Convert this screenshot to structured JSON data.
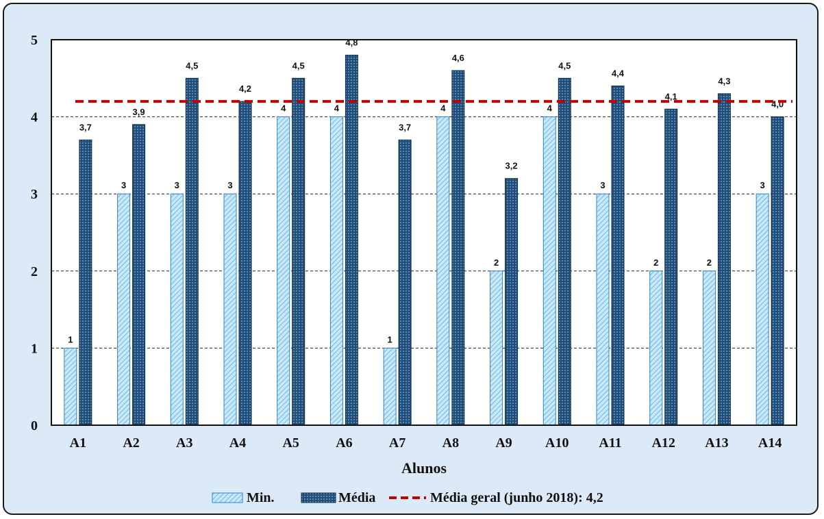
{
  "chart_data": {
    "type": "bar",
    "categories": [
      "A1",
      "A2",
      "A3",
      "A4",
      "A5",
      "A6",
      "A7",
      "A8",
      "A9",
      "A10",
      "A11",
      "A12",
      "A13",
      "A14"
    ],
    "series": [
      {
        "name": "Min.",
        "values": [
          1,
          3,
          3,
          3,
          4,
          4,
          1,
          4,
          2,
          4,
          3,
          2,
          2,
          3
        ],
        "labels": [
          "1",
          "3",
          "3",
          "3",
          "4",
          "4",
          "1",
          "4",
          "2",
          "4",
          "3",
          "2",
          "2",
          "3"
        ],
        "color": "#bfe3f5"
      },
      {
        "name": "Média",
        "values": [
          3.7,
          3.9,
          4.5,
          4.2,
          4.5,
          4.8,
          3.7,
          4.6,
          3.2,
          4.5,
          4.4,
          4.1,
          4.3,
          4.0
        ],
        "labels": [
          "3,7",
          "3,9",
          "4,5",
          "4,2",
          "4,5",
          "4,8",
          "3,7",
          "4,6",
          "3,2",
          "4,5",
          "4,4",
          "4,1",
          "4,3",
          "4,0"
        ],
        "color": "#1f4e79"
      }
    ],
    "reference_line": {
      "name": "Média geral (junho 2018): 4,2",
      "value": 4.2,
      "color": "#c00000",
      "style": "dashed"
    },
    "xlabel": "Alunos",
    "ylabel": "",
    "ylim": [
      0,
      5
    ],
    "yticks": [
      "0",
      "1",
      "2",
      "3",
      "4",
      "5"
    ],
    "grid": true,
    "legend_position": "bottom"
  }
}
